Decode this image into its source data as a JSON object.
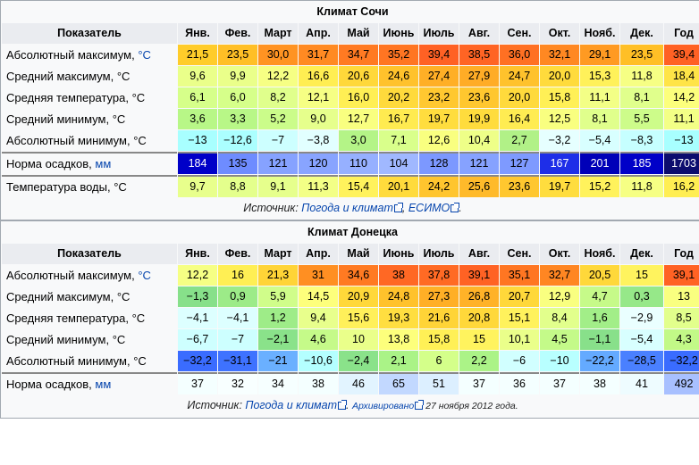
{
  "months": [
    "Янв.",
    "Фев.",
    "Март",
    "Апр.",
    "Май",
    "Июнь",
    "Июль",
    "Авг.",
    "Сен.",
    "Окт.",
    "Нояб.",
    "Дек.",
    "Год"
  ],
  "header_label": "Показатель",
  "tables": [
    {
      "title": "Климат Сочи",
      "rows": [
        {
          "label": "Абсолютный максимум, ",
          "unit": "°C",
          "values": [
            "21,5",
            "23,5",
            "30,0",
            "31,7",
            "34,7",
            "35,2",
            "39,4",
            "38,5",
            "36,0",
            "32,1",
            "29,1",
            "23,5",
            "39,4"
          ],
          "colors": [
            "#ffcc2a",
            "#ffbf26",
            "#ff9322",
            "#ff8a22",
            "#ff7a22",
            "#ff7522",
            "#ff6124",
            "#ff6424",
            "#ff7023",
            "#ff8822",
            "#ff9a22",
            "#ffbf26",
            "#ff6124"
          ]
        },
        {
          "label": "Средний максимум, °C",
          "unit": "",
          "values": [
            "9,6",
            "9,9",
            "12,2",
            "16,6",
            "20,6",
            "24,6",
            "27,4",
            "27,9",
            "24,7",
            "20,0",
            "15,3",
            "11,8",
            "18,4"
          ],
          "colors": [
            "#eaff8a",
            "#eaff8a",
            "#f6ff84",
            "#ffee52",
            "#ffd83a",
            "#ffc22c",
            "#ffaf26",
            "#ffac26",
            "#ffc22c",
            "#ffdb3c",
            "#fff15a",
            "#f6ff84",
            "#ffe447"
          ]
        },
        {
          "label": "Средняя температура, °C",
          "unit": "",
          "values": [
            "6,1",
            "6,0",
            "8,2",
            "12,1",
            "16,0",
            "20,2",
            "23,2",
            "23,6",
            "20,0",
            "15,8",
            "11,1",
            "8,1",
            "14,2"
          ],
          "colors": [
            "#d6ff8a",
            "#d6ff8a",
            "#e0ff8c",
            "#f6ff84",
            "#ffef54",
            "#ffda3c",
            "#ffc830",
            "#ffc72f",
            "#ffda3c",
            "#fff056",
            "#f3ff86",
            "#e0ff8c",
            "#fcff7c"
          ]
        },
        {
          "label": "Средний минимум, °C",
          "unit": "",
          "values": [
            "3,6",
            "3,3",
            "5,2",
            "9,0",
            "12,7",
            "16,7",
            "19,7",
            "19,9",
            "16,4",
            "12,5",
            "8,1",
            "5,5",
            "11,1"
          ],
          "colors": [
            "#b8f787",
            "#b8f787",
            "#cbfc8a",
            "#e6ff8c",
            "#f9ff80",
            "#ffeb50",
            "#ffdd3e",
            "#ffdc3d",
            "#ffec52",
            "#f9ff80",
            "#e0ff8c",
            "#cdfc8a",
            "#f3ff86"
          ]
        },
        {
          "label": "Абсолютный минимум, °C",
          "unit": "",
          "values": [
            "−13",
            "−12,6",
            "−7",
            "−3,8",
            "3,0",
            "7,1",
            "12,6",
            "10,4",
            "2,7",
            "−3,2",
            "−5,4",
            "−8,3",
            "−13"
          ],
          "colors": [
            "#a8ffff",
            "#abffff",
            "#cdffff",
            "#e2ffff",
            "#b4f487",
            "#d9ff8b",
            "#f9ff80",
            "#eeff88",
            "#b1f187",
            "#e6ffff",
            "#d8ffff",
            "#c6ffff",
            "#a8ffff"
          ]
        },
        {
          "label": "Норма осадков, ",
          "unit": "мм",
          "thick": true,
          "values": [
            "184",
            "135",
            "121",
            "120",
            "110",
            "104",
            "128",
            "121",
            "127",
            "167",
            "201",
            "185",
            "1703"
          ],
          "colors": [
            "#0000c8",
            "#6e8cff",
            "#86a2ff",
            "#88a4ff",
            "#96b0ff",
            "#a0b8ff",
            "#7c98ff",
            "#86a2ff",
            "#7e9aff",
            "#1e2ee8",
            "#0000b8",
            "#0000c8",
            "#0c0c6e"
          ],
          "textcolors": [
            "#fff",
            "#000",
            "#000",
            "#000",
            "#000",
            "#000",
            "#000",
            "#000",
            "#000",
            "#fff",
            "#fff",
            "#fff",
            "#fff"
          ]
        },
        {
          "label": "Температура воды, °C",
          "unit": "",
          "thick": true,
          "values": [
            "9,7",
            "8,8",
            "9,1",
            "11,3",
            "15,4",
            "20,1",
            "24,2",
            "25,6",
            "23,6",
            "19,7",
            "15,2",
            "11,8",
            "16,2"
          ],
          "colors": [
            "#e8ff8c",
            "#e4ff8c",
            "#e6ff8c",
            "#f3ff86",
            "#fff25c",
            "#ffdb3c",
            "#ffc52e",
            "#ffba2a",
            "#ffc72f",
            "#ffdd3e",
            "#fff25c",
            "#f6ff84",
            "#ffee52"
          ]
        }
      ],
      "source": {
        "prefix": "Источник: ",
        "link1": "Погода и климат",
        "sep": ", ",
        "link2": "ЕСИМО",
        "suffix": "."
      }
    },
    {
      "title": "Климат Донецка",
      "rows": [
        {
          "label": "Абсолютный максимум, ",
          "unit": "°C",
          "values": [
            "12,2",
            "16",
            "21,3",
            "31",
            "34,6",
            "38",
            "37,8",
            "39,1",
            "35,1",
            "32,7",
            "20,5",
            "15",
            "39,1"
          ],
          "colors": [
            "#f6ff84",
            "#ffef54",
            "#ffd437",
            "#ff8f22",
            "#ff7a22",
            "#ff6824",
            "#ff6a24",
            "#ff6224",
            "#ff7622",
            "#ff8622",
            "#ffd83a",
            "#fff35e",
            "#ff6224"
          ]
        },
        {
          "label": "Средний максимум, °C",
          "unit": "",
          "values": [
            "−1,3",
            "0,9",
            "5,9",
            "14,5",
            "20,9",
            "24,8",
            "27,3",
            "26,8",
            "20,7",
            "12,9",
            "4,7",
            "0,3",
            "13"
          ],
          "colors": [
            "#87e08a",
            "#9ceb88",
            "#d0fd8a",
            "#fdff7c",
            "#ffd83a",
            "#ffc22c",
            "#ffaf26",
            "#ffb228",
            "#ffd83a",
            "#f9ff80",
            "#c6fa89",
            "#96e889",
            "#f9ff80"
          ]
        },
        {
          "label": "Средняя температура, °C",
          "unit": "",
          "values": [
            "−4,1",
            "−4,1",
            "1,2",
            "9,4",
            "15,6",
            "19,3",
            "21,6",
            "20,8",
            "15,1",
            "8,4",
            "1,6",
            "−2,9",
            "8,5"
          ],
          "colors": [
            "#ddffff",
            "#ddffff",
            "#9eec88",
            "#e8ff8c",
            "#fff05a",
            "#ffde40",
            "#ffd437",
            "#ffd83a",
            "#fff25c",
            "#e2ff8c",
            "#a2ee88",
            "#eaffff",
            "#e2ff8c"
          ]
        },
        {
          "label": "Средний минимум, °C",
          "unit": "",
          "values": [
            "−6,7",
            "−7",
            "−2,1",
            "4,6",
            "10",
            "13,8",
            "15,8",
            "15",
            "10,1",
            "4,5",
            "−1,1",
            "−5,4",
            "4,3"
          ],
          "colors": [
            "#ceffff",
            "#cdffff",
            "#8ae28a",
            "#c5fa89",
            "#eaff8a",
            "#fdff7c",
            "#fff056",
            "#fff35e",
            "#eaff8a",
            "#c4fa89",
            "#88e08a",
            "#d8ffff",
            "#c2f987"
          ]
        },
        {
          "label": "Абсолютный минимум, °C",
          "unit": "",
          "values": [
            "−32,2",
            "−31,1",
            "−21",
            "−10,6",
            "−2,4",
            "2,1",
            "6",
            "2,2",
            "−6",
            "−10",
            "−22,2",
            "−28,5",
            "−32,2"
          ],
          "colors": [
            "#3a6cff",
            "#3e72ff",
            "#6ab0ff",
            "#b4ffff",
            "#8ae28a",
            "#aaf387",
            "#d4ff8a",
            "#abf387",
            "#d1ffff",
            "#b8ffff",
            "#64aaff",
            "#4a80ff",
            "#3a6cff"
          ]
        },
        {
          "label": "Норма осадков, ",
          "unit": "мм",
          "thick": true,
          "values": [
            "37",
            "32",
            "34",
            "38",
            "46",
            "65",
            "51",
            "37",
            "36",
            "37",
            "38",
            "41",
            "492"
          ],
          "colors": [
            "#f4ffff",
            "#f8ffff",
            "#f6ffff",
            "#f4ffff",
            "#e2f4ff",
            "#c2d8ff",
            "#dcefff",
            "#f4ffff",
            "#f4ffff",
            "#f4ffff",
            "#f4ffff",
            "#eefcff",
            "#a8c0ff"
          ],
          "textcolors": [
            "#000",
            "#000",
            "#000",
            "#000",
            "#000",
            "#000",
            "#000",
            "#000",
            "#000",
            "#000",
            "#000",
            "#000",
            "#000"
          ]
        }
      ],
      "source": {
        "prefix": "Источник: ",
        "link1": "Погода и климат",
        "sep": ". ",
        "link2": "Архивировано",
        "suffix": " 27 ноября 2012 года."
      }
    }
  ]
}
